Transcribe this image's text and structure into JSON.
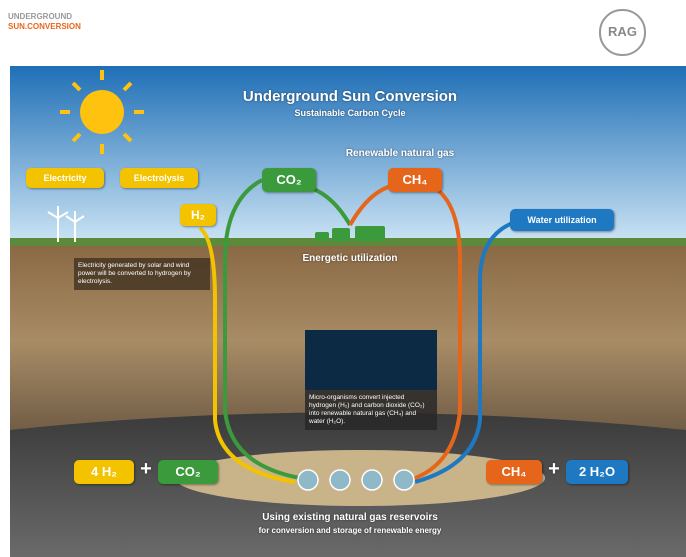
{
  "header": {
    "logo_line1": "UNDERGROUND",
    "logo_line2": "SUN.CONVERSION",
    "partner_logo": "RAG"
  },
  "diagram": {
    "title": "Underground Sun Conversion",
    "subtitle": "Sustainable Carbon Cycle",
    "renewable_label": "Renewable natural gas",
    "boxes": {
      "electricity": "Electricity",
      "electrolysis": "Electrolysis",
      "h2": "H₂",
      "co2": "CO₂",
      "ch4": "CH₄",
      "water": "Water utilization"
    },
    "energetic_label": "Energetic utilization",
    "electrolysis_note": "Electricity generated by solar and wind power will be converted to hydrogen by electrolysis.",
    "microbe_note": "Micro-organisms convert injected hydrogen (H₂) and carbon dioxide (CO₂) into renewable natural gas (CH₄) and water (H₂O).",
    "equation": {
      "left1": "4 H₂",
      "plus1": "+",
      "left2": "CO₂",
      "right1": "CH₄",
      "plus2": "+",
      "right2": "2 H₂O"
    },
    "footer_line1": "Using existing natural gas reservoirs",
    "footer_line2": "for conversion and storage of renewable energy"
  }
}
